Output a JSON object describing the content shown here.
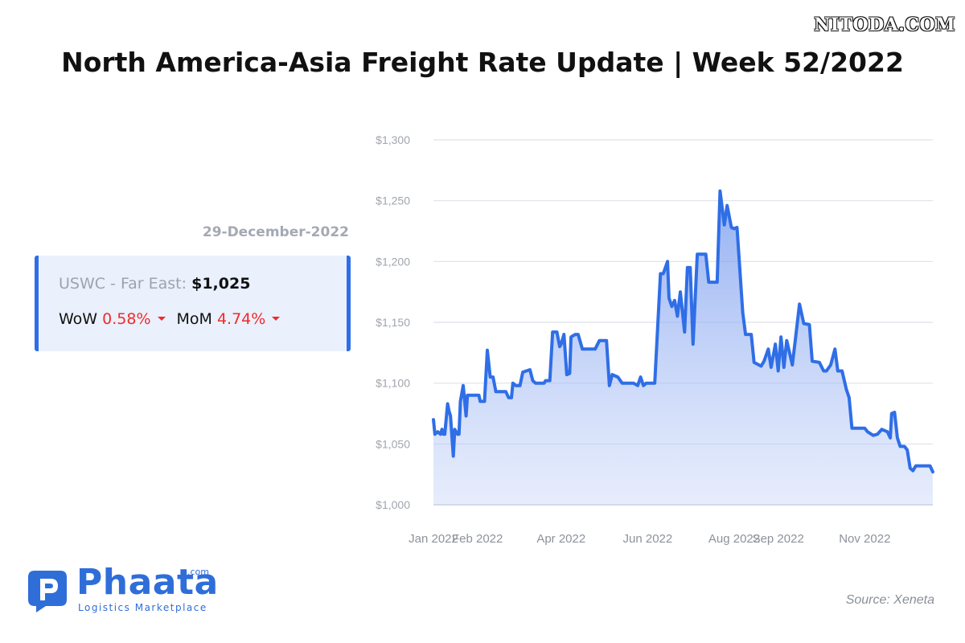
{
  "watermark": "NITODA.COM",
  "title": "North America-Asia Freight Rate Update | Week 52/2022",
  "date": "29-December-2022",
  "card": {
    "route_label": "USWC - Far East:",
    "price": "$1,025",
    "wow_label": "WoW",
    "wow_value": "0.58%",
    "mom_label": "MoM",
    "mom_value": "4.74%"
  },
  "logo": {
    "name": "Phaata",
    "suffix": ".com",
    "tagline": "Logistics Marketplace"
  },
  "source": "Source: Xeneta",
  "colors": {
    "accent": "#2f6ee6",
    "line": "#2f6ee6",
    "negative": "#ef2b2b",
    "axis_text": "#a0a5ad",
    "grid": "#dde2ea"
  },
  "chart_data": {
    "type": "area",
    "title": "",
    "xlabel": "",
    "ylabel": "",
    "y_ticks": [
      "$1,000",
      "$1,050",
      "$1,100",
      "$1,150",
      "$1,200",
      "$1,250",
      "$1,300"
    ],
    "ylim": [
      1000,
      1300
    ],
    "x_ticks": [
      "Jan 2022",
      "Feb 2022",
      "Apr 2022",
      "Jun 2022",
      "Aug 2022",
      "Sep 2022",
      "Nov 2022"
    ],
    "x_tick_dates": [
      "2022-01-01",
      "2022-02-01",
      "2022-04-01",
      "2022-06-01",
      "2022-08-01",
      "2022-09-01",
      "2022-11-01"
    ],
    "grid": true,
    "series": [
      {
        "name": "",
        "points": [
          [
            "2022-01-01",
            1070
          ],
          [
            "2022-01-02",
            1058
          ],
          [
            "2022-01-04",
            1060
          ],
          [
            "2022-01-06",
            1058
          ],
          [
            "2022-01-07",
            1062
          ],
          [
            "2022-01-08",
            1058
          ],
          [
            "2022-01-09",
            1058
          ],
          [
            "2022-01-11",
            1083
          ],
          [
            "2022-01-12",
            1077
          ],
          [
            "2022-01-13",
            1073
          ],
          [
            "2022-01-15",
            1040
          ],
          [
            "2022-01-16",
            1062
          ],
          [
            "2022-01-18",
            1058
          ],
          [
            "2022-01-19",
            1058
          ],
          [
            "2022-01-20",
            1085
          ],
          [
            "2022-01-22",
            1098
          ],
          [
            "2022-01-24",
            1073
          ],
          [
            "2022-01-25",
            1090
          ],
          [
            "2022-01-27",
            1090
          ],
          [
            "2022-01-28",
            1090
          ],
          [
            "2022-02-02",
            1090
          ],
          [
            "2022-02-03",
            1085
          ],
          [
            "2022-02-06",
            1085
          ],
          [
            "2022-02-08",
            1127
          ],
          [
            "2022-02-10",
            1105
          ],
          [
            "2022-02-12",
            1105
          ],
          [
            "2022-02-14",
            1093
          ],
          [
            "2022-02-20",
            1093
          ],
          [
            "2022-02-21",
            1093
          ],
          [
            "2022-02-23",
            1088
          ],
          [
            "2022-02-25",
            1088
          ],
          [
            "2022-02-26",
            1100
          ],
          [
            "2022-02-28",
            1098
          ],
          [
            "2022-03-03",
            1098
          ],
          [
            "2022-03-05",
            1109
          ],
          [
            "2022-03-10",
            1111
          ],
          [
            "2022-03-12",
            1102
          ],
          [
            "2022-03-14",
            1100
          ],
          [
            "2022-03-20",
            1100
          ],
          [
            "2022-03-21",
            1102
          ],
          [
            "2022-03-24",
            1102
          ],
          [
            "2022-03-26",
            1142
          ],
          [
            "2022-03-29",
            1142
          ],
          [
            "2022-03-31",
            1130
          ],
          [
            "2022-04-01",
            1132
          ],
          [
            "2022-04-03",
            1140
          ],
          [
            "2022-04-05",
            1107
          ],
          [
            "2022-04-07",
            1108
          ],
          [
            "2022-04-08",
            1138
          ],
          [
            "2022-04-11",
            1140
          ],
          [
            "2022-04-13",
            1140
          ],
          [
            "2022-04-16",
            1128
          ],
          [
            "2022-04-21",
            1128
          ],
          [
            "2022-04-23",
            1128
          ],
          [
            "2022-04-25",
            1128
          ],
          [
            "2022-04-28",
            1135
          ],
          [
            "2022-05-03",
            1135
          ],
          [
            "2022-05-05",
            1098
          ],
          [
            "2022-05-07",
            1107
          ],
          [
            "2022-05-11",
            1105
          ],
          [
            "2022-05-14",
            1100
          ],
          [
            "2022-05-20",
            1100
          ],
          [
            "2022-05-22",
            1100
          ],
          [
            "2022-05-25",
            1098
          ],
          [
            "2022-05-27",
            1105
          ],
          [
            "2022-05-29",
            1098
          ],
          [
            "2022-05-31",
            1100
          ],
          [
            "2022-06-03",
            1100
          ],
          [
            "2022-06-06",
            1100
          ],
          [
            "2022-06-10",
            1190
          ],
          [
            "2022-06-12",
            1190
          ],
          [
            "2022-06-15",
            1200
          ],
          [
            "2022-06-16",
            1170
          ],
          [
            "2022-06-18",
            1163
          ],
          [
            "2022-06-20",
            1168
          ],
          [
            "2022-06-22",
            1155
          ],
          [
            "2022-06-24",
            1175
          ],
          [
            "2022-06-27",
            1142
          ],
          [
            "2022-06-29",
            1195
          ],
          [
            "2022-07-01",
            1195
          ],
          [
            "2022-07-03",
            1132
          ],
          [
            "2022-07-06",
            1206
          ],
          [
            "2022-07-09",
            1206
          ],
          [
            "2022-07-12",
            1206
          ],
          [
            "2022-07-14",
            1183
          ],
          [
            "2022-07-17",
            1183
          ],
          [
            "2022-07-20",
            1183
          ],
          [
            "2022-07-22",
            1258
          ],
          [
            "2022-07-25",
            1230
          ],
          [
            "2022-07-27",
            1246
          ],
          [
            "2022-07-30",
            1228
          ],
          [
            "2022-08-01",
            1227
          ],
          [
            "2022-08-03",
            1228
          ],
          [
            "2022-08-07",
            1158
          ],
          [
            "2022-08-09",
            1140
          ],
          [
            "2022-08-13",
            1140
          ],
          [
            "2022-08-15",
            1117
          ],
          [
            "2022-08-20",
            1114
          ],
          [
            "2022-08-22",
            1118
          ],
          [
            "2022-08-25",
            1128
          ],
          [
            "2022-08-27",
            1113
          ],
          [
            "2022-08-30",
            1132
          ],
          [
            "2022-09-01",
            1110
          ],
          [
            "2022-09-03",
            1138
          ],
          [
            "2022-09-05",
            1113
          ],
          [
            "2022-09-07",
            1135
          ],
          [
            "2022-09-11",
            1115
          ],
          [
            "2022-09-13",
            1135
          ],
          [
            "2022-09-16",
            1165
          ],
          [
            "2022-09-19",
            1149
          ],
          [
            "2022-09-23",
            1148
          ],
          [
            "2022-09-25",
            1118
          ],
          [
            "2022-09-30",
            1117
          ],
          [
            "2022-10-03",
            1110
          ],
          [
            "2022-10-05",
            1110
          ],
          [
            "2022-10-08",
            1115
          ],
          [
            "2022-10-11",
            1128
          ],
          [
            "2022-10-13",
            1110
          ],
          [
            "2022-10-16",
            1110
          ],
          [
            "2022-10-19",
            1095
          ],
          [
            "2022-10-21",
            1088
          ],
          [
            "2022-10-23",
            1063
          ],
          [
            "2022-10-26",
            1063
          ],
          [
            "2022-10-28",
            1063
          ],
          [
            "2022-11-01",
            1063
          ],
          [
            "2022-11-03",
            1060
          ],
          [
            "2022-11-07",
            1057
          ],
          [
            "2022-11-10",
            1058
          ],
          [
            "2022-11-13",
            1062
          ],
          [
            "2022-11-17",
            1060
          ],
          [
            "2022-11-19",
            1055
          ],
          [
            "2022-11-20",
            1075
          ],
          [
            "2022-11-22",
            1076
          ],
          [
            "2022-11-24",
            1055
          ],
          [
            "2022-11-26",
            1048
          ],
          [
            "2022-11-29",
            1048
          ],
          [
            "2022-12-01",
            1045
          ],
          [
            "2022-12-03",
            1030
          ],
          [
            "2022-12-05",
            1028
          ],
          [
            "2022-12-07",
            1032
          ],
          [
            "2022-12-10",
            1032
          ],
          [
            "2022-12-14",
            1032
          ],
          [
            "2022-12-17",
            1032
          ],
          [
            "2022-12-19",
            1027
          ]
        ]
      }
    ]
  }
}
